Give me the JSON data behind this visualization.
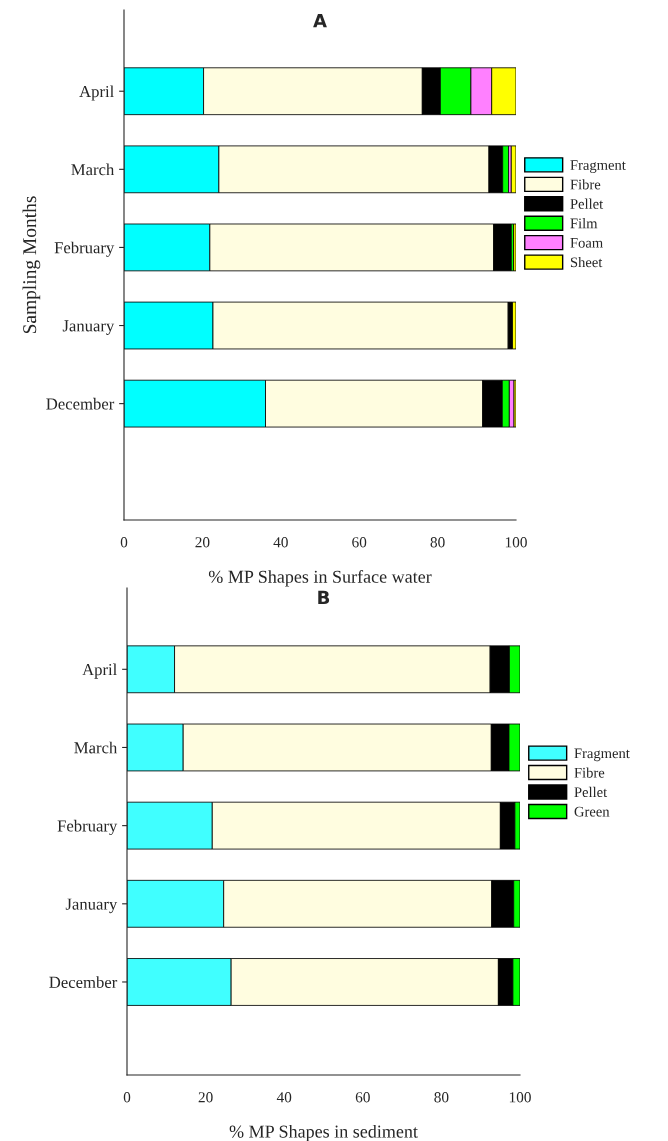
{
  "chart_data": [
    {
      "type": "bar",
      "orientation": "horizontal",
      "stacked": true,
      "title": "A",
      "xlabel": "% MP Shapes in Surface water",
      "ylabel": "Sampling Months",
      "legend": "right",
      "grid": false,
      "categories": [
        "April",
        "March",
        "February",
        "January",
        "December"
      ],
      "xlim": [
        0,
        100
      ],
      "xticks": [
        0,
        20,
        40,
        60,
        80,
        100
      ],
      "series": [
        {
          "name": "Fragment",
          "color": "#00ffff",
          "values": [
            20.3,
            24.2,
            21.9,
            22.7,
            36.1
          ]
        },
        {
          "name": "Fibre",
          "color": "#fffde0",
          "values": [
            55.8,
            68.9,
            72.4,
            75.3,
            55.4
          ]
        },
        {
          "name": "Pellet",
          "color": "#000000",
          "values": [
            4.6,
            3.5,
            4.5,
            1.1,
            5.0
          ]
        },
        {
          "name": "Film",
          "color": "#00ff00",
          "values": [
            7.8,
            1.5,
            0.6,
            0,
            1.8
          ]
        },
        {
          "name": "Foam",
          "color": "#ff80ff",
          "values": [
            5.3,
            0.7,
            0,
            0,
            1.2
          ]
        },
        {
          "name": "Sheet",
          "color": "#ffff00",
          "values": [
            6.2,
            1.2,
            0.6,
            0.9,
            0.5
          ]
        }
      ]
    },
    {
      "type": "bar",
      "orientation": "horizontal",
      "stacked": true,
      "title": "B",
      "xlabel": "% MP Shapes in sediment",
      "legend": "right",
      "grid": false,
      "categories": [
        "April",
        "March",
        "February",
        "January",
        "December"
      ],
      "xlim": [
        0,
        100
      ],
      "xticks": [
        0,
        20,
        40,
        60,
        80,
        100
      ],
      "series": [
        {
          "name": "Fragment",
          "color": "#40ffff",
          "values": [
            12.1,
            14.3,
            21.7,
            24.6,
            26.5
          ]
        },
        {
          "name": "Fibre",
          "color": "#fffde0",
          "values": [
            80.3,
            78.4,
            73.3,
            68.2,
            68.0
          ]
        },
        {
          "name": "Pellet",
          "color": "#000000",
          "values": [
            4.9,
            4.5,
            3.7,
            5.6,
            3.7
          ]
        },
        {
          "name": "Green",
          "color": "#00ff00",
          "values": [
            2.7,
            2.8,
            1.3,
            1.6,
            1.8
          ]
        }
      ]
    }
  ]
}
